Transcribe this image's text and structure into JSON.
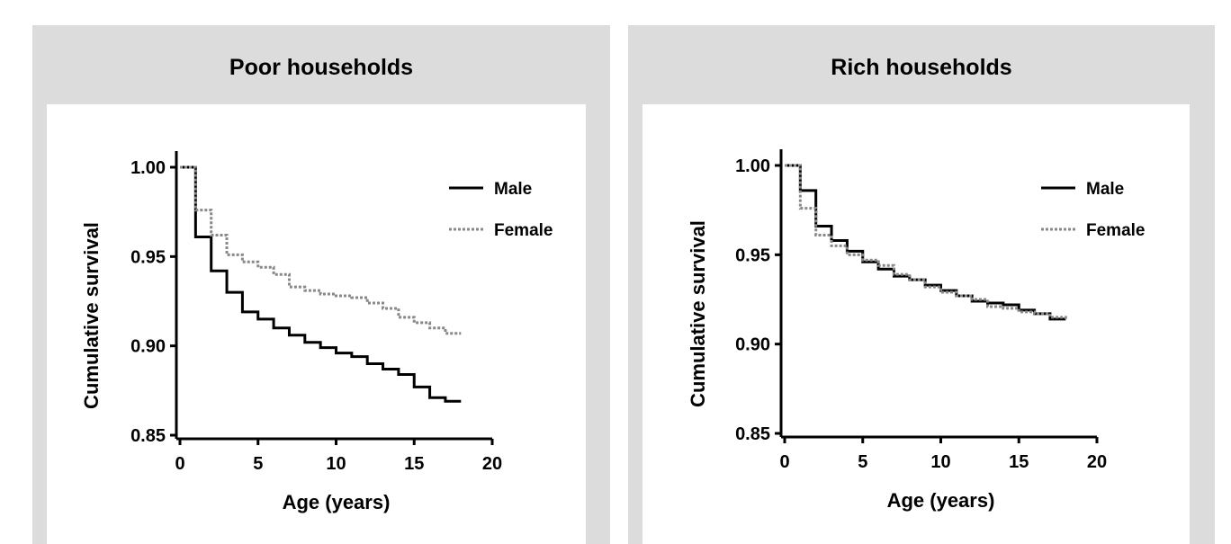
{
  "chart_data": [
    {
      "type": "line",
      "step": true,
      "title": "Poor households",
      "xlabel": "Age (years)",
      "ylabel": "Cumulative survival",
      "xlim": [
        0,
        20
      ],
      "ylim": [
        0.85,
        1.0
      ],
      "xticks": [
        "0",
        "5",
        "10",
        "15",
        "20"
      ],
      "yticks": [
        "0.85",
        "0.90",
        "0.95",
        "1.00"
      ],
      "legend_position": "top-right",
      "series": [
        {
          "name": "Male",
          "style": "solid",
          "color": "#000000",
          "x": [
            0,
            1,
            2,
            3,
            4,
            5,
            6,
            7,
            8,
            9,
            10,
            11,
            12,
            13,
            14,
            15,
            16,
            17,
            18
          ],
          "y": [
            1.0,
            0.961,
            0.942,
            0.93,
            0.919,
            0.915,
            0.91,
            0.906,
            0.902,
            0.899,
            0.896,
            0.894,
            0.89,
            0.887,
            0.884,
            0.877,
            0.871,
            0.869,
            0.869
          ]
        },
        {
          "name": "Female",
          "style": "dotted",
          "color": "#888888",
          "x": [
            0,
            1,
            2,
            3,
            4,
            5,
            6,
            7,
            8,
            9,
            10,
            11,
            12,
            13,
            14,
            15,
            16,
            17,
            18
          ],
          "y": [
            1.0,
            0.976,
            0.962,
            0.951,
            0.947,
            0.944,
            0.94,
            0.933,
            0.931,
            0.929,
            0.928,
            0.927,
            0.924,
            0.921,
            0.916,
            0.913,
            0.91,
            0.907,
            0.907
          ]
        }
      ]
    },
    {
      "type": "line",
      "step": true,
      "title": "Rich households",
      "xlabel": "Age (years)",
      "ylabel": "Cumulative survival",
      "xlim": [
        0,
        20
      ],
      "ylim": [
        0.85,
        1.0
      ],
      "xticks": [
        "0",
        "5",
        "10",
        "15",
        "20"
      ],
      "yticks": [
        "0.85",
        "0.90",
        "0.95",
        "1.00"
      ],
      "legend_position": "top-right",
      "series": [
        {
          "name": "Male",
          "style": "solid",
          "color": "#000000",
          "x": [
            0,
            1,
            2,
            3,
            4,
            5,
            6,
            7,
            8,
            9,
            10,
            11,
            12,
            13,
            14,
            15,
            16,
            17,
            18
          ],
          "y": [
            1.0,
            0.986,
            0.966,
            0.958,
            0.952,
            0.946,
            0.942,
            0.938,
            0.936,
            0.933,
            0.93,
            0.927,
            0.924,
            0.923,
            0.922,
            0.919,
            0.917,
            0.914,
            0.914
          ]
        },
        {
          "name": "Female",
          "style": "dotted",
          "color": "#888888",
          "x": [
            0,
            1,
            2,
            3,
            4,
            5,
            6,
            7,
            8,
            9,
            10,
            11,
            12,
            13,
            14,
            15,
            16,
            17,
            18
          ],
          "y": [
            1.0,
            0.976,
            0.961,
            0.955,
            0.95,
            0.947,
            0.944,
            0.939,
            0.936,
            0.932,
            0.929,
            0.927,
            0.925,
            0.921,
            0.92,
            0.918,
            0.917,
            0.915,
            0.914
          ]
        }
      ]
    }
  ]
}
